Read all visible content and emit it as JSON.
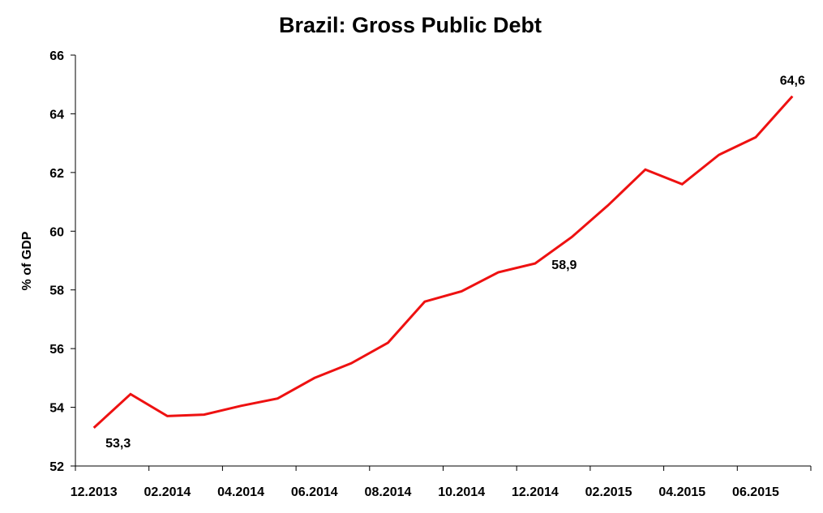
{
  "chart_data": {
    "type": "line",
    "title": "Brazil: Gross Public Debt",
    "y_label": "% of GDP",
    "categories": [
      "12.2013",
      null,
      "02.2014",
      null,
      "04.2014",
      null,
      "06.2014",
      null,
      "08.2014",
      null,
      "10.2014",
      null,
      "12.2014",
      null,
      "02.2015",
      null,
      "04.2015",
      null,
      "06.2015",
      null
    ],
    "series": [
      {
        "name": "Gross Public Debt",
        "color": "#ee1111",
        "values": [
          53.3,
          54.45,
          53.7,
          53.75,
          54.05,
          54.3,
          55.0,
          55.5,
          56.2,
          57.6,
          57.95,
          58.6,
          58.9,
          59.8,
          60.9,
          62.1,
          61.6,
          62.6,
          63.2,
          64.6
        ],
        "value_labels": [
          "53,3",
          null,
          null,
          null,
          null,
          null,
          null,
          null,
          null,
          null,
          null,
          null,
          "58,9",
          null,
          null,
          null,
          null,
          null,
          null,
          "64,6"
        ]
      }
    ],
    "ylim": [
      52,
      66
    ],
    "yticks": [
      52,
      54,
      56,
      58,
      60,
      62,
      64,
      66
    ]
  }
}
